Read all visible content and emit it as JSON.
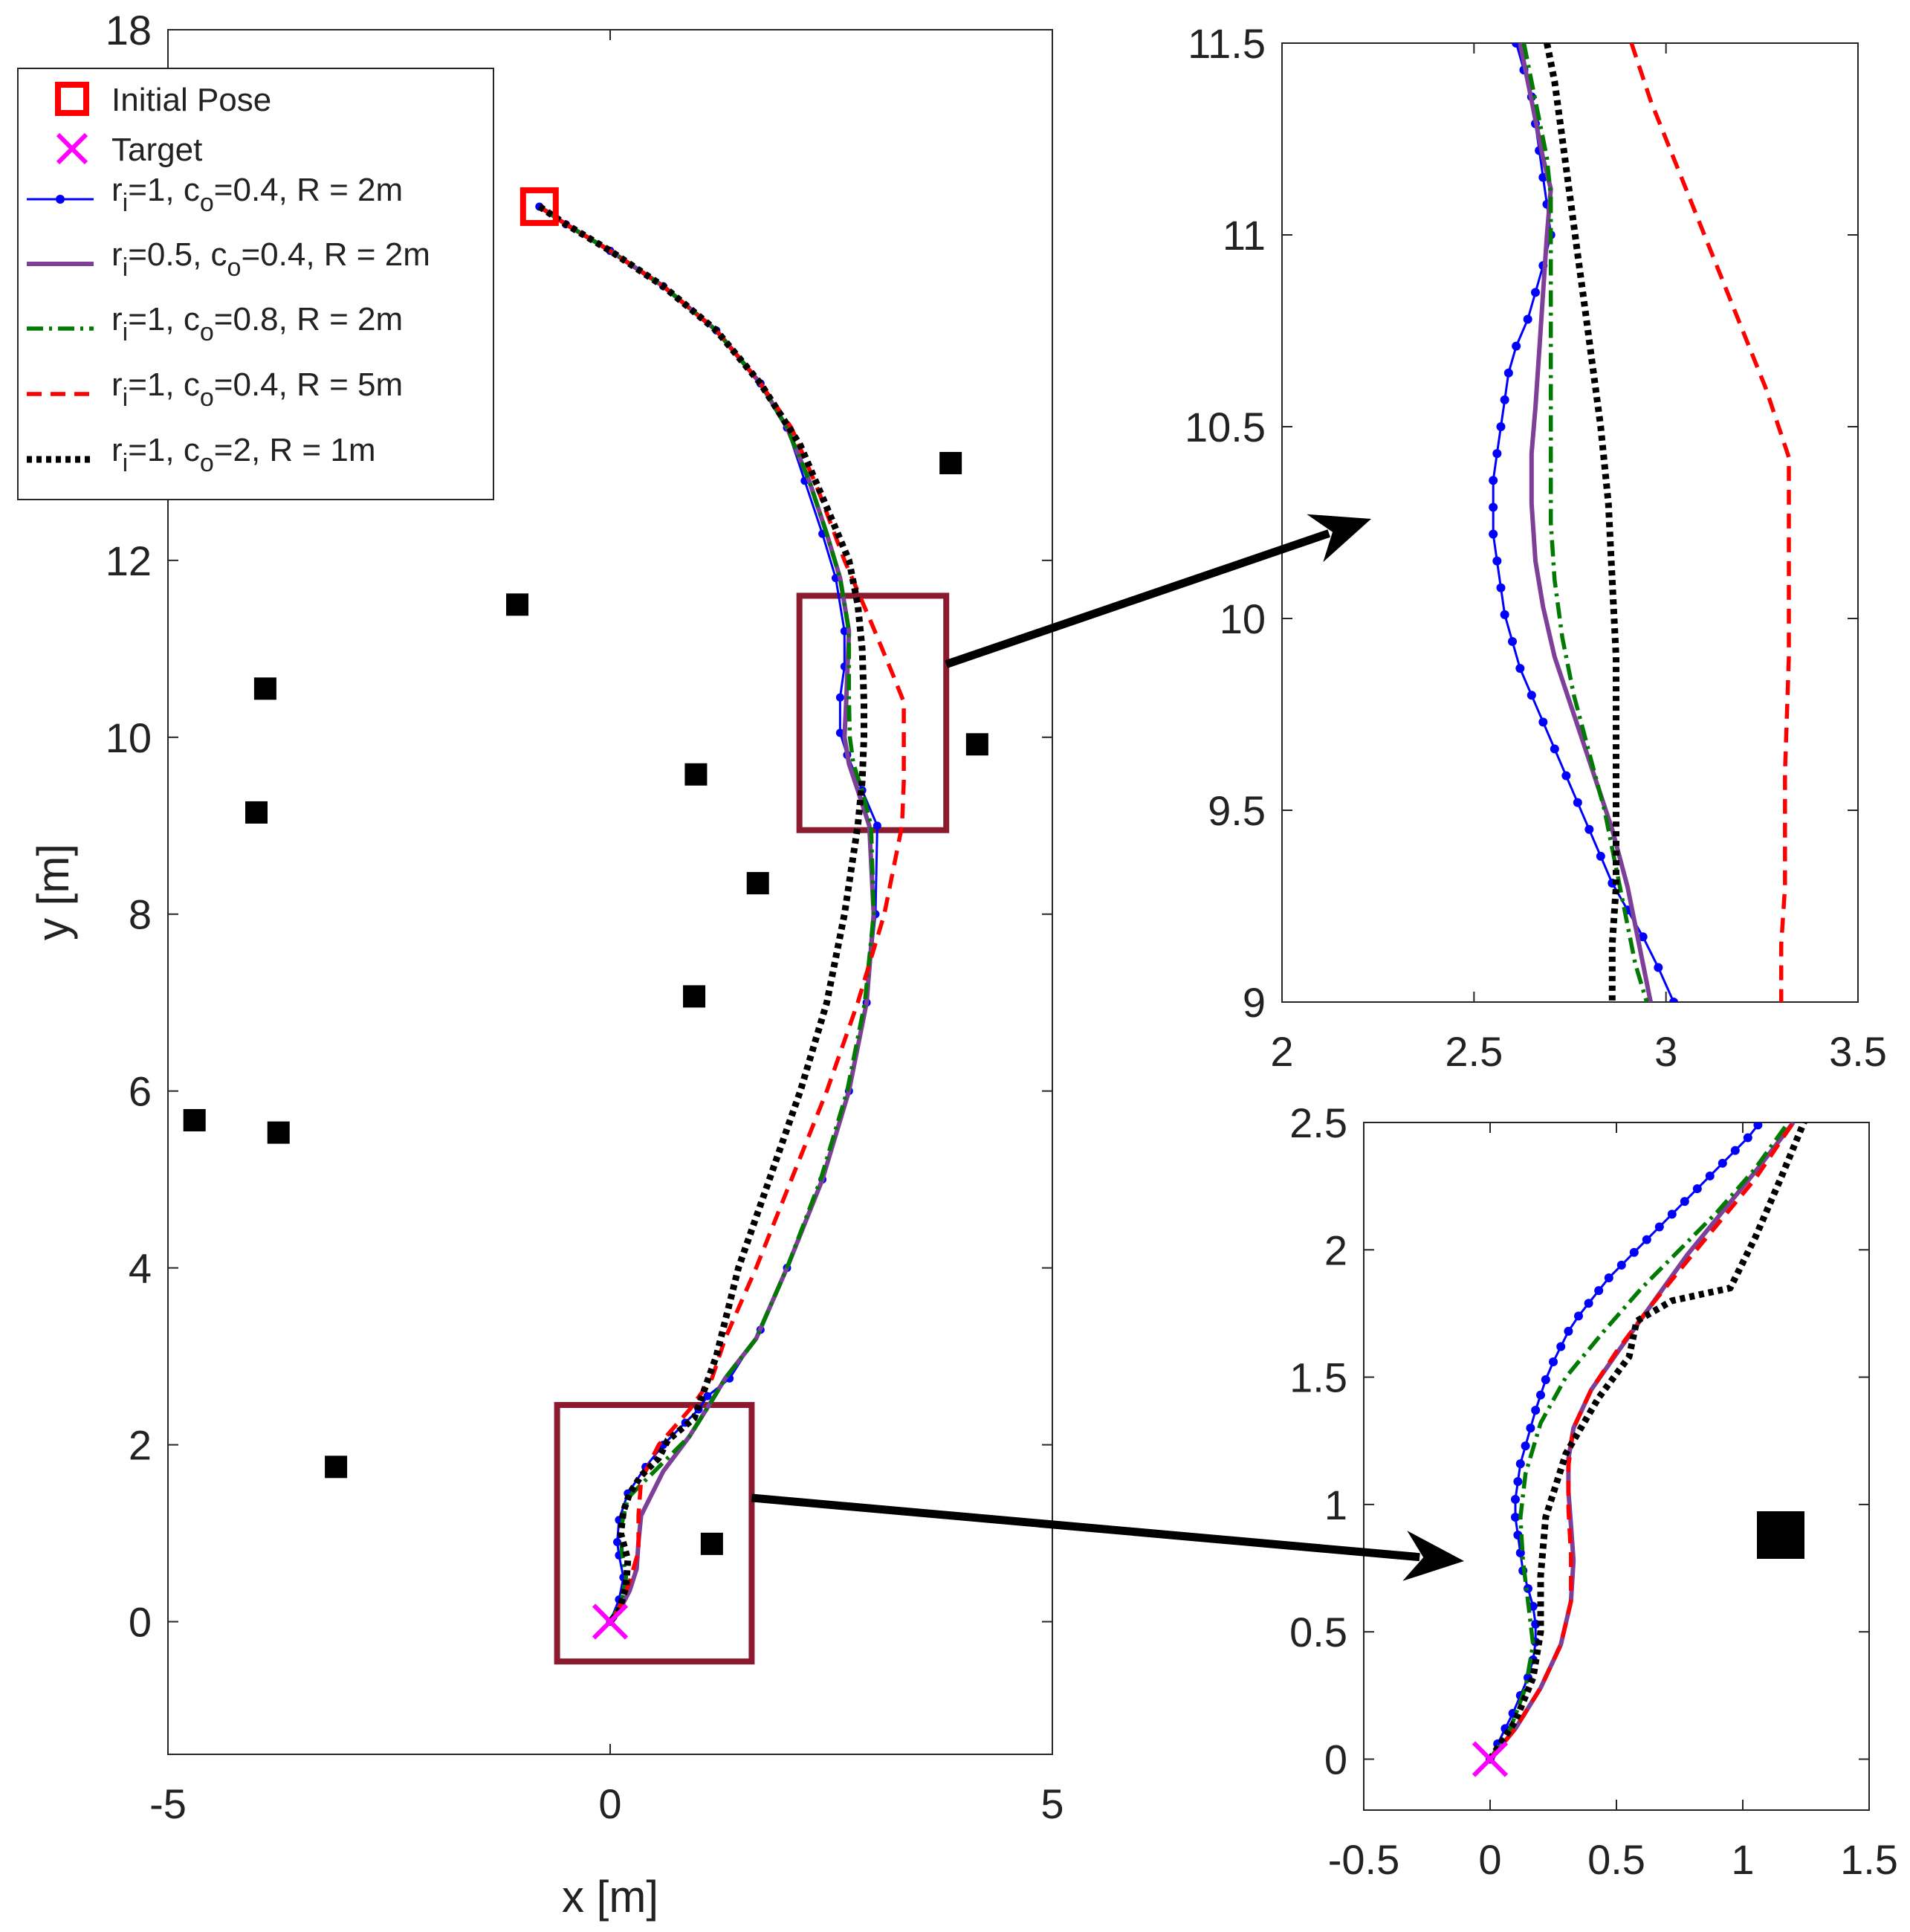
{
  "chart_data": [
    {
      "id": "main",
      "type": "line",
      "xlabel": "x [m]",
      "ylabel": "y [m]",
      "xlim": [
        -5,
        5
      ],
      "ylim": [
        -1.5,
        18
      ],
      "xticks": [
        -5,
        0,
        5
      ],
      "xtick_labels": [
        "-5",
        "0",
        "5"
      ],
      "yticks": [
        0,
        2,
        4,
        6,
        8,
        10,
        12,
        18
      ],
      "ytick_labels": [
        "0",
        "2",
        "4",
        "6",
        "8",
        "10",
        "12",
        "18"
      ],
      "legend_position": "top-left",
      "legend": [
        {
          "key": "initial",
          "label": "Initial Pose"
        },
        {
          "key": "target",
          "label": "Target"
        },
        {
          "key": "blue",
          "r": "1",
          "c": "0.4",
          "R": "2m"
        },
        {
          "key": "purple",
          "r": "0.5",
          "c": "0.4",
          "R": "2m"
        },
        {
          "key": "green",
          "r": "1",
          "c": "0.8",
          "R": "2m"
        },
        {
          "key": "red",
          "r": "1",
          "c": "0.4",
          "R": "5m"
        },
        {
          "key": "black",
          "r": "1",
          "c": "2",
          "R": "1m"
        }
      ],
      "initial_pose": [
        -0.8,
        16.0
      ],
      "target": [
        0,
        0
      ],
      "obstacles": [
        [
          3.85,
          13.1
        ],
        [
          -1.05,
          11.5
        ],
        [
          -3.9,
          10.55
        ],
        [
          4.15,
          9.92
        ],
        [
          0.97,
          9.58
        ],
        [
          -4.0,
          9.15
        ],
        [
          1.67,
          8.35
        ],
        [
          0.95,
          7.07
        ],
        [
          -4.7,
          5.67
        ],
        [
          -3.75,
          5.53
        ],
        [
          -3.1,
          1.75
        ],
        [
          1.15,
          0.88
        ]
      ],
      "zoom_boxes": [
        {
          "name": "upper",
          "x": [
            2.14,
            3.8
          ],
          "y": [
            8.95,
            11.6
          ]
        },
        {
          "name": "lower",
          "x": [
            -0.6,
            1.6
          ],
          "y": [
            -0.45,
            2.45
          ]
        }
      ],
      "series": [
        {
          "name": "blue",
          "color": "#0000ff",
          "style": "marker-line",
          "x": [
            -0.8,
            -0.5,
            0.0,
            0.6,
            1.2,
            1.7,
            2.0,
            2.2,
            2.4,
            2.55,
            2.65,
            2.65,
            2.6,
            2.6,
            2.68,
            2.85,
            3.02,
            3.0,
            2.9,
            2.7,
            2.4,
            2.0,
            1.7,
            1.35,
            1.1,
            1.0,
            0.85,
            0.6,
            0.4,
            0.2,
            0.1,
            0.08,
            0.1,
            0.15,
            0.1,
            0.0
          ],
          "y": [
            16.0,
            15.8,
            15.5,
            15.1,
            14.6,
            14.0,
            13.5,
            12.9,
            12.3,
            11.8,
            11.2,
            10.8,
            10.45,
            10.05,
            9.8,
            9.4,
            9.0,
            8.0,
            7.0,
            6.0,
            5.0,
            4.0,
            3.3,
            2.75,
            2.55,
            2.4,
            2.25,
            2.0,
            1.75,
            1.45,
            1.15,
            0.9,
            0.75,
            0.5,
            0.25,
            0.0
          ]
        },
        {
          "name": "purple",
          "color": "#7e3f98",
          "style": "solid",
          "x": [
            -0.8,
            -0.5,
            0.0,
            0.6,
            1.2,
            1.7,
            2.0,
            2.25,
            2.45,
            2.6,
            2.7,
            2.67,
            2.65,
            2.7,
            2.8,
            2.93,
            2.98,
            2.9,
            2.7,
            2.4,
            2.0,
            1.65,
            1.3,
            1.15,
            0.9,
            0.6,
            0.35,
            0.32,
            0.3,
            0.22,
            0.1,
            0.0
          ],
          "y": [
            16.0,
            15.8,
            15.5,
            15.1,
            14.6,
            14.0,
            13.5,
            12.9,
            12.3,
            11.8,
            11.2,
            10.42,
            10.0,
            9.7,
            9.4,
            9.0,
            8.0,
            7.0,
            6.0,
            5.0,
            4.0,
            3.2,
            2.75,
            2.5,
            2.1,
            1.7,
            1.2,
            0.9,
            0.6,
            0.35,
            0.12,
            0.0
          ]
        },
        {
          "name": "green",
          "color": "#007a00",
          "style": "dashdot",
          "x": [
            -0.8,
            -0.5,
            0.0,
            0.6,
            1.2,
            1.7,
            2.0,
            2.25,
            2.45,
            2.6,
            2.7,
            2.7,
            2.71,
            2.75,
            2.85,
            2.95,
            2.98,
            2.88,
            2.68,
            2.38,
            2.0,
            1.65,
            1.3,
            1.15,
            0.9,
            0.5,
            0.2,
            0.13,
            0.13,
            0.18,
            0.12,
            0.0
          ],
          "y": [
            16.0,
            15.8,
            15.5,
            15.1,
            14.6,
            14.0,
            13.5,
            12.9,
            12.3,
            11.8,
            11.2,
            10.42,
            10.0,
            9.7,
            9.4,
            9.0,
            8.0,
            7.0,
            6.0,
            5.0,
            4.0,
            3.2,
            2.75,
            2.5,
            2.1,
            1.7,
            1.4,
            1.1,
            0.8,
            0.5,
            0.2,
            0.0
          ]
        },
        {
          "name": "red",
          "color": "#ff0000",
          "style": "dashed",
          "x": [
            -0.8,
            -0.5,
            0.0,
            0.6,
            1.2,
            1.7,
            2.05,
            2.35,
            2.65,
            2.95,
            3.2,
            3.32,
            3.32,
            3.3,
            3.1,
            2.8,
            2.45,
            2.05,
            1.65,
            1.3,
            1.15,
            0.9,
            0.55,
            0.35,
            0.32,
            0.32,
            0.22,
            0.1,
            0.0
          ],
          "y": [
            16.0,
            15.8,
            15.5,
            15.1,
            14.6,
            14.0,
            13.5,
            12.8,
            12.0,
            11.3,
            10.7,
            10.4,
            9.5,
            9.0,
            8.0,
            7.0,
            6.0,
            5.0,
            4.0,
            3.2,
            2.75,
            2.4,
            2.0,
            1.6,
            1.2,
            0.8,
            0.45,
            0.15,
            0.0
          ]
        },
        {
          "name": "black",
          "color": "#000000",
          "style": "dotted",
          "x": [
            -0.8,
            -0.5,
            0.0,
            0.6,
            1.2,
            1.7,
            2.15,
            2.45,
            2.7,
            2.8,
            2.85,
            2.87,
            2.87,
            2.85,
            2.8,
            2.65,
            2.45,
            2.15,
            1.8,
            1.45,
            1.2,
            0.95,
            0.65,
            0.55,
            0.35,
            0.22,
            0.15,
            0.12,
            0.2,
            0.18,
            0.1,
            0.0
          ],
          "y": [
            16.0,
            15.8,
            15.5,
            15.1,
            14.6,
            14.0,
            13.3,
            12.6,
            12.0,
            11.5,
            11.0,
            10.4,
            10.0,
            9.5,
            9.0,
            8.0,
            7.0,
            6.0,
            5.0,
            4.0,
            3.0,
            2.3,
            2.05,
            1.85,
            1.65,
            1.45,
            1.25,
            1.0,
            0.7,
            0.4,
            0.12,
            0.0
          ]
        }
      ]
    },
    {
      "id": "zoom-upper",
      "type": "line",
      "xlim": [
        2,
        3.5
      ],
      "ylim": [
        9,
        11.5
      ],
      "xticks": [
        2,
        2.5,
        3,
        3.5
      ],
      "xtick_labels": [
        "2",
        "2.5",
        "3",
        "3.5"
      ],
      "yticks": [
        9,
        9.5,
        10,
        10.5,
        11,
        11.5
      ],
      "ytick_labels": [
        "9",
        "9.5",
        "10",
        "10.5",
        "11",
        "11.5"
      ],
      "series": [
        {
          "name": "blue",
          "color": "#0000ff",
          "style": "marker-line",
          "x": [
            2.61,
            2.63,
            2.65,
            2.66,
            2.67,
            2.68,
            2.69,
            2.7,
            2.68,
            2.66,
            2.64,
            2.61,
            2.59,
            2.58,
            2.57,
            2.56,
            2.55,
            2.55,
            2.55,
            2.56,
            2.57,
            2.58,
            2.6,
            2.62,
            2.65,
            2.68,
            2.71,
            2.74,
            2.77,
            2.8,
            2.83,
            2.86,
            2.9,
            2.94,
            2.98,
            3.02
          ],
          "y": [
            11.5,
            11.43,
            11.36,
            11.29,
            11.22,
            11.15,
            11.08,
            11.0,
            10.92,
            10.85,
            10.78,
            10.71,
            10.64,
            10.57,
            10.5,
            10.43,
            10.36,
            10.29,
            10.22,
            10.15,
            10.08,
            10.01,
            9.94,
            9.87,
            9.8,
            9.73,
            9.66,
            9.59,
            9.52,
            9.45,
            9.38,
            9.31,
            9.24,
            9.17,
            9.09,
            9.0
          ]
        },
        {
          "name": "purple",
          "color": "#7e3f98",
          "style": "solid",
          "x": [
            2.62,
            2.64,
            2.66,
            2.68,
            2.7,
            2.69,
            2.68,
            2.67,
            2.66,
            2.65,
            2.65,
            2.66,
            2.68,
            2.71,
            2.76,
            2.81,
            2.86,
            2.9,
            2.93,
            2.96
          ],
          "y": [
            11.5,
            11.4,
            11.3,
            11.2,
            11.12,
            11.0,
            10.85,
            10.7,
            10.55,
            10.43,
            10.3,
            10.15,
            10.03,
            9.9,
            9.75,
            9.6,
            9.45,
            9.3,
            9.15,
            9.0
          ]
        },
        {
          "name": "green",
          "color": "#007a00",
          "style": "dashdot",
          "x": [
            2.63,
            2.65,
            2.67,
            2.69,
            2.7,
            2.7,
            2.7,
            2.7,
            2.7,
            2.7,
            2.7,
            2.71,
            2.73,
            2.76,
            2.8,
            2.84,
            2.87,
            2.9,
            2.92,
            2.95
          ],
          "y": [
            11.5,
            11.4,
            11.3,
            11.2,
            11.1,
            11.0,
            10.85,
            10.7,
            10.55,
            10.42,
            10.25,
            10.1,
            9.95,
            9.8,
            9.65,
            9.5,
            9.35,
            9.2,
            9.1,
            9.0
          ]
        },
        {
          "name": "red",
          "color": "#ff0000",
          "style": "dashed",
          "x": [
            2.91,
            2.96,
            3.02,
            3.08,
            3.14,
            3.2,
            3.26,
            3.32,
            3.32,
            3.32,
            3.31,
            3.31,
            3.3,
            3.3
          ],
          "y": [
            11.5,
            11.35,
            11.2,
            11.05,
            10.9,
            10.75,
            10.6,
            10.42,
            10.2,
            9.9,
            9.6,
            9.3,
            9.15,
            9.0
          ]
        },
        {
          "name": "black",
          "color": "#000000",
          "style": "dotted",
          "x": [
            2.69,
            2.71,
            2.73,
            2.75,
            2.77,
            2.79,
            2.81,
            2.83,
            2.85,
            2.86,
            2.87,
            2.87,
            2.87,
            2.87,
            2.86,
            2.86
          ],
          "y": [
            11.5,
            11.4,
            11.25,
            11.1,
            10.95,
            10.8,
            10.65,
            10.5,
            10.3,
            10.1,
            9.9,
            9.7,
            9.5,
            9.3,
            9.15,
            9.0
          ]
        }
      ]
    },
    {
      "id": "zoom-lower",
      "type": "line",
      "xlim": [
        -0.5,
        1.5
      ],
      "ylim": [
        -0.2,
        2.5
      ],
      "xticks": [
        -0.5,
        0,
        0.5,
        1,
        1.5
      ],
      "xtick_labels": [
        "-0.5",
        "0",
        "0.5",
        "1",
        "1.5"
      ],
      "yticks": [
        0,
        0.5,
        1,
        1.5,
        2,
        2.5
      ],
      "ytick_labels": [
        "0",
        "0.5",
        "1",
        "1.5",
        "2",
        "2.5"
      ],
      "obstacles": [
        [
          1.15,
          0.88
        ]
      ],
      "target": [
        0,
        0
      ],
      "series": [
        {
          "name": "blue",
          "color": "#0000ff",
          "style": "marker-line",
          "x": [
            0.0,
            0.03,
            0.06,
            0.09,
            0.12,
            0.15,
            0.17,
            0.18,
            0.18,
            0.17,
            0.15,
            0.13,
            0.12,
            0.11,
            0.1,
            0.1,
            0.11,
            0.12,
            0.14,
            0.16,
            0.18,
            0.2,
            0.22,
            0.25,
            0.28,
            0.31,
            0.35,
            0.39,
            0.43,
            0.47,
            0.52,
            0.57,
            0.62,
            0.67,
            0.72,
            0.77,
            0.82,
            0.87,
            0.92,
            0.97,
            1.02,
            1.06
          ],
          "y": [
            0.0,
            0.06,
            0.12,
            0.18,
            0.25,
            0.32,
            0.39,
            0.46,
            0.53,
            0.6,
            0.67,
            0.74,
            0.81,
            0.88,
            0.95,
            1.02,
            1.09,
            1.16,
            1.23,
            1.3,
            1.37,
            1.43,
            1.49,
            1.56,
            1.62,
            1.68,
            1.74,
            1.79,
            1.84,
            1.89,
            1.94,
            1.99,
            2.04,
            2.09,
            2.14,
            2.19,
            2.24,
            2.29,
            2.34,
            2.39,
            2.44,
            2.49
          ]
        },
        {
          "name": "purple",
          "color": "#7e3f98",
          "style": "solid",
          "x": [
            0.0,
            0.1,
            0.2,
            0.28,
            0.32,
            0.33,
            0.32,
            0.31,
            0.31,
            0.33,
            0.4,
            0.52,
            0.65,
            0.78,
            0.92,
            1.06,
            1.2
          ],
          "y": [
            0.0,
            0.12,
            0.28,
            0.45,
            0.62,
            0.78,
            0.92,
            1.05,
            1.18,
            1.3,
            1.45,
            1.62,
            1.8,
            1.98,
            2.15,
            2.32,
            2.5
          ]
        },
        {
          "name": "green",
          "color": "#007a00",
          "style": "dashdot",
          "x": [
            0.0,
            0.08,
            0.14,
            0.17,
            0.15,
            0.13,
            0.12,
            0.14,
            0.2,
            0.3,
            0.45,
            0.6,
            0.75,
            0.9,
            1.05,
            1.18
          ],
          "y": [
            0.0,
            0.12,
            0.28,
            0.45,
            0.62,
            0.78,
            0.95,
            1.12,
            1.32,
            1.5,
            1.68,
            1.85,
            2.0,
            2.15,
            2.32,
            2.5
          ]
        },
        {
          "name": "red",
          "color": "#ff0000",
          "style": "dashed",
          "x": [
            0.0,
            0.1,
            0.2,
            0.28,
            0.32,
            0.32,
            0.31,
            0.31,
            0.33,
            0.4,
            0.5,
            0.62,
            0.75,
            0.9,
            1.05,
            1.2
          ],
          "y": [
            0.0,
            0.12,
            0.28,
            0.45,
            0.62,
            0.8,
            0.98,
            1.15,
            1.3,
            1.45,
            1.6,
            1.76,
            1.92,
            2.1,
            2.28,
            2.5
          ]
        },
        {
          "name": "black",
          "color": "#000000",
          "style": "dotted",
          "x": [
            0.0,
            0.1,
            0.17,
            0.2,
            0.2,
            0.22,
            0.3,
            0.43,
            0.55,
            0.58,
            0.72,
            0.95,
            1.05,
            1.15,
            1.25
          ],
          "y": [
            0.0,
            0.15,
            0.32,
            0.5,
            0.72,
            0.95,
            1.2,
            1.42,
            1.58,
            1.72,
            1.8,
            1.85,
            2.05,
            2.28,
            2.52
          ]
        }
      ]
    }
  ]
}
